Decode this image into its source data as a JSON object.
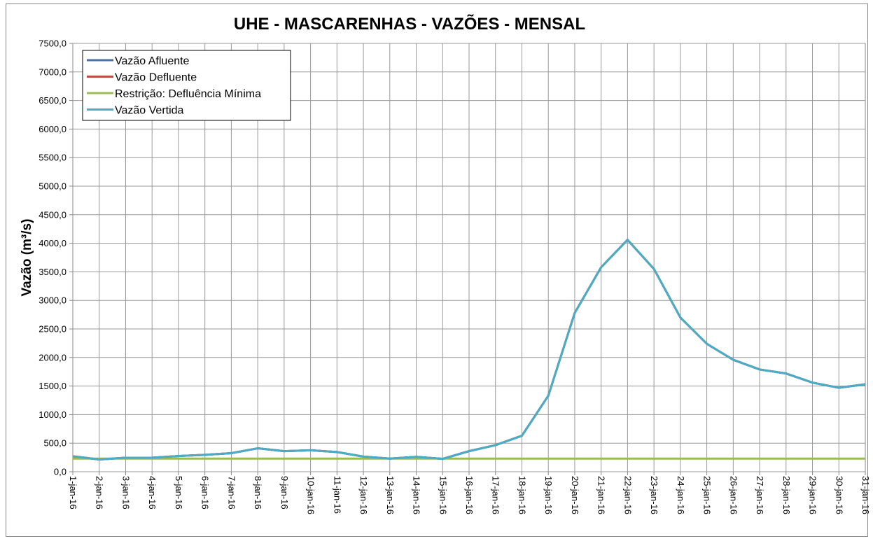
{
  "chart_data": {
    "type": "line",
    "title": "UHE - MASCARENHAS - VAZÕES - MENSAL",
    "y_label": "Vazão (m³/s)",
    "categories": [
      "1-jan-16",
      "2-jan-16",
      "3-jan-16",
      "4-jan-16",
      "5-jan-16",
      "6-jan-16",
      "7-jan-16",
      "8-jan-16",
      "9-jan-16",
      "10-jan-16",
      "11-jan-16",
      "12-jan-16",
      "13-jan-16",
      "14-jan-16",
      "15-jan-16",
      "16-jan-16",
      "17-jan-16",
      "18-jan-16",
      "19-jan-16",
      "20-jan-16",
      "21-jan-16",
      "22-jan-16",
      "23-jan-16",
      "24-jan-16",
      "25-jan-16",
      "26-jan-16",
      "27-jan-16",
      "28-jan-16",
      "29-jan-16",
      "30-jan-16",
      "31-jan-16"
    ],
    "series": [
      {
        "name": "Vazão Afluente",
        "color": "#4a6fa5",
        "values": [
          270,
          215,
          245,
          245,
          275,
          295,
          325,
          410,
          360,
          375,
          345,
          265,
          230,
          260,
          225,
          360,
          465,
          630,
          1330,
          2780,
          3580,
          4060,
          3550,
          2700,
          2240,
          1960,
          1790,
          1720,
          1560,
          1470,
          1530
        ]
      },
      {
        "name": "Vazão Defluente",
        "color": "#be4b48",
        "values": [
          270,
          215,
          245,
          245,
          275,
          295,
          325,
          410,
          360,
          375,
          345,
          265,
          230,
          260,
          225,
          360,
          465,
          630,
          1330,
          2780,
          3580,
          4060,
          3550,
          2700,
          2240,
          1960,
          1790,
          1720,
          1560,
          1470,
          1530
        ]
      },
      {
        "name": "Restrição: Defluência Mínima",
        "color": "#9bbb59",
        "values": [
          230,
          230,
          230,
          230,
          230,
          230,
          230,
          230,
          230,
          230,
          230,
          230,
          230,
          230,
          230,
          230,
          230,
          230,
          230,
          230,
          230,
          230,
          230,
          230,
          230,
          230,
          230,
          230,
          230,
          230,
          230
        ]
      },
      {
        "name": "Vazão Vertida",
        "color": "#4bacc6",
        "values": [
          270,
          215,
          245,
          245,
          275,
          295,
          325,
          410,
          360,
          375,
          345,
          265,
          230,
          260,
          225,
          360,
          465,
          630,
          1330,
          2780,
          3580,
          4060,
          3550,
          2700,
          2240,
          1960,
          1790,
          1720,
          1560,
          1470,
          1530
        ]
      }
    ],
    "ylim": [
      0,
      7500
    ],
    "yticks": [
      {
        "value": 0,
        "label": "0,0"
      },
      {
        "value": 500,
        "label": "500,0"
      },
      {
        "value": 1000,
        "label": "1000,0"
      },
      {
        "value": 1500,
        "label": "1500,0"
      },
      {
        "value": 2000,
        "label": "2000,0"
      },
      {
        "value": 2500,
        "label": "2500,0"
      },
      {
        "value": 3000,
        "label": "3000,0"
      },
      {
        "value": 3500,
        "label": "3500,0"
      },
      {
        "value": 4000,
        "label": "4000,0"
      },
      {
        "value": 4500,
        "label": "4500,0"
      },
      {
        "value": 5000,
        "label": "5000,0"
      },
      {
        "value": 5500,
        "label": "5500,0"
      },
      {
        "value": 6000,
        "label": "6000,0"
      },
      {
        "value": 6500,
        "label": "6500,0"
      },
      {
        "value": 7000,
        "label": "7000,0"
      },
      {
        "value": 7500,
        "label": "7500,0"
      }
    ],
    "grid": true,
    "legend": "upper left"
  }
}
